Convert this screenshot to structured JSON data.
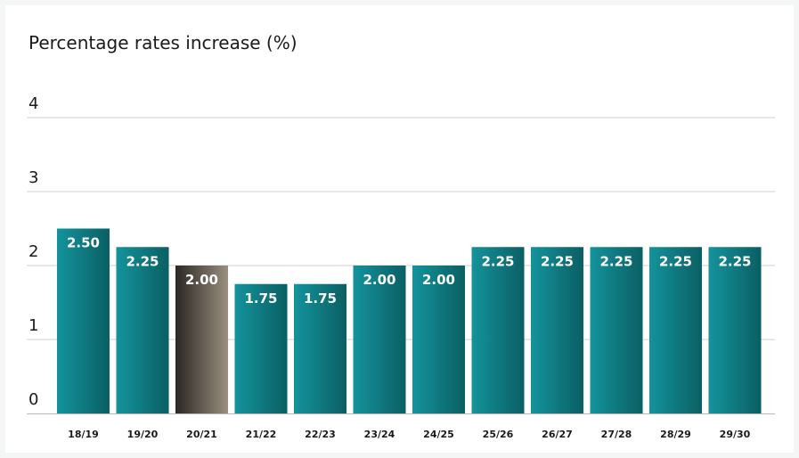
{
  "chart_data": {
    "type": "bar",
    "title": "Percentage rates increase (%)",
    "xlabel": "",
    "ylabel": "",
    "categories": [
      "18/19",
      "19/20",
      "20/21",
      "21/22",
      "22/23",
      "23/24",
      "24/25",
      "25/26",
      "26/27",
      "27/28",
      "28/29",
      "29/30"
    ],
    "values": [
      2.5,
      2.25,
      2.0,
      1.75,
      1.75,
      2.0,
      2.0,
      2.25,
      2.25,
      2.25,
      2.25,
      2.25
    ],
    "value_labels": [
      "2.50",
      "2.25",
      "2.00",
      "1.75",
      "1.75",
      "2.00",
      "2.00",
      "2.25",
      "2.25",
      "2.25",
      "2.25",
      "2.25"
    ],
    "highlight_category": "20/21",
    "yticks": [
      "0",
      "1",
      "2",
      "3",
      "4"
    ],
    "ylim": [
      0,
      4
    ],
    "grid": true,
    "legend": "none",
    "colors": {
      "bar_light": "#14939c",
      "bar_dark": "#0a5f63",
      "highlight_light": "#9a8f80",
      "highlight_dark": "#2b2723",
      "label": "#ffffff",
      "grid": "#cfcfcf",
      "text": "#1a1a1a"
    }
  }
}
